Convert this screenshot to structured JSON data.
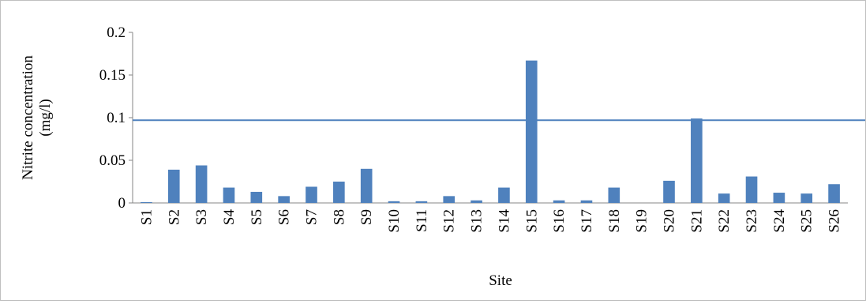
{
  "chart_data": {
    "type": "bar",
    "title": "",
    "xlabel": "Site",
    "ylabel_line1": "Nitrite concentration",
    "ylabel_line2": "(mg/l)",
    "ylim": [
      0,
      0.2
    ],
    "yticks": [
      0,
      0.05,
      0.1,
      0.15,
      0.2
    ],
    "ytick_labels": [
      "0",
      "0.05",
      "0.1",
      "0.15",
      "0.2"
    ],
    "grid": false,
    "legend": "none",
    "bar_color": "#4f81bd",
    "reference_line": {
      "value": 0.097,
      "color": "#4f81bd"
    },
    "categories": [
      "S1",
      "S2",
      "S3",
      "S4",
      "S5",
      "S6",
      "S7",
      "S8",
      "S9",
      "S10",
      "S11",
      "S12",
      "S13",
      "S14",
      "S15",
      "S16",
      "S17",
      "S18",
      "S19",
      "S20",
      "S21",
      "S22",
      "S23",
      "S24",
      "S25",
      "S26"
    ],
    "values": [
      0.001,
      0.039,
      0.044,
      0.018,
      0.013,
      0.008,
      0.019,
      0.025,
      0.04,
      0.002,
      0.002,
      0.008,
      0.003,
      0.018,
      0.167,
      0.003,
      0.003,
      0.018,
      0.0,
      0.026,
      0.099,
      0.011,
      0.031,
      0.012,
      0.011,
      0.022
    ]
  }
}
